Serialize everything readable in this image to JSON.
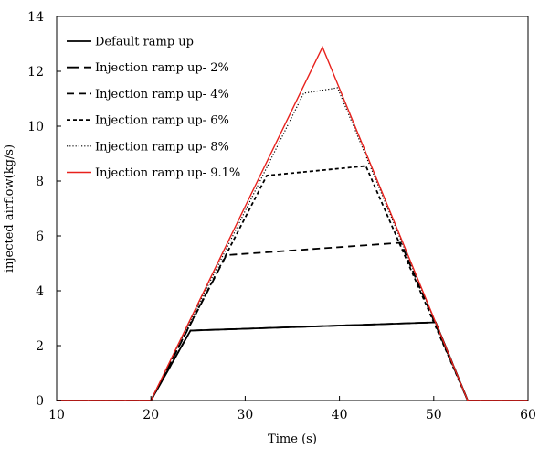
{
  "chart_data": {
    "type": "line",
    "title": "",
    "xlabel": "Time (s)",
    "ylabel": "injected airflow(kg/s)",
    "xlim": [
      10,
      60
    ],
    "ylim": [
      0,
      14
    ],
    "x_ticks": [
      10,
      20,
      30,
      40,
      50,
      60
    ],
    "y_ticks": [
      0,
      2,
      4,
      6,
      8,
      10,
      12,
      14
    ],
    "x_tick_labels": [
      "10",
      "20",
      "30",
      "40",
      "50",
      "60"
    ],
    "y_tick_labels": [
      "0",
      "2",
      "4",
      "6",
      "8",
      "10",
      "12",
      "14"
    ],
    "grid": false,
    "legend_position": "top-left",
    "series": [
      {
        "name": "Default ramp up",
        "style": "solid",
        "color": "#000000",
        "points": [
          [
            10,
            0
          ],
          [
            20,
            0
          ],
          [
            24.2,
            2.55
          ],
          [
            50.2,
            2.85
          ],
          [
            53.6,
            0
          ],
          [
            60,
            0
          ]
        ]
      },
      {
        "name": "Injection ramp up- 2%",
        "style": "long-dash",
        "color": "#000000",
        "points": [
          [
            10,
            0
          ],
          [
            20,
            0
          ],
          [
            24.2,
            2.55
          ],
          [
            50.2,
            2.85
          ],
          [
            53.6,
            0
          ],
          [
            60,
            0
          ]
        ]
      },
      {
        "name": "Injection ramp up- 4%",
        "style": "dash",
        "color": "#000000",
        "points": [
          [
            10,
            0
          ],
          [
            20,
            0
          ],
          [
            28,
            5.3
          ],
          [
            46.5,
            5.75
          ],
          [
            53.6,
            0
          ],
          [
            60,
            0
          ]
        ]
      },
      {
        "name": "Injection ramp up- 6%",
        "style": "short-dash",
        "color": "#000000",
        "points": [
          [
            10,
            0
          ],
          [
            20,
            0
          ],
          [
            32.3,
            8.2
          ],
          [
            42.8,
            8.55
          ],
          [
            53.6,
            0
          ],
          [
            60,
            0
          ]
        ]
      },
      {
        "name": "Injection ramp up- 8%",
        "style": "dotted",
        "color": "#000000",
        "points": [
          [
            10,
            0
          ],
          [
            20,
            0
          ],
          [
            36.2,
            11.2
          ],
          [
            39.8,
            11.4
          ],
          [
            53.6,
            0
          ],
          [
            60,
            0
          ]
        ]
      },
      {
        "name": "Injection ramp up- 9.1%",
        "style": "solid",
        "color": "#e8211c",
        "points": [
          [
            10,
            0
          ],
          [
            20,
            0
          ],
          [
            38.2,
            12.88
          ],
          [
            53.6,
            0
          ],
          [
            60,
            0
          ]
        ]
      }
    ]
  }
}
